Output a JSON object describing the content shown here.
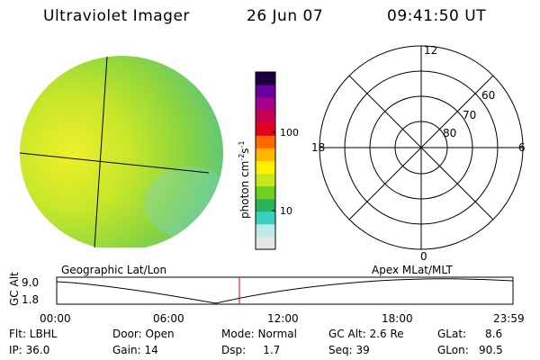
{
  "header": {
    "title": "Ultraviolet Imager",
    "date": "26 Jun 07",
    "time": "09:41:50 UT"
  },
  "colorbar": {
    "label_main": "photon cm",
    "label_exp1": "-2",
    "label_mid": "s",
    "label_exp2": "-1",
    "ticks": [
      "100",
      "10"
    ],
    "colors": [
      "#e6e6e6",
      "#bfe9e6",
      "#3ad0c4",
      "#2ab35a",
      "#6ed11f",
      "#c6e81b",
      "#fff000",
      "#ffb400",
      "#ff6a00",
      "#e4001a",
      "#c8004e",
      "#a8008a",
      "#6b00a0",
      "#1a0040"
    ]
  },
  "polar": {
    "mlt_labels": [
      "12",
      "18",
      "6",
      "0"
    ],
    "lat_labels": [
      "60",
      "70",
      "80"
    ]
  },
  "altitude_plot": {
    "left_label": "Geographic Lat/Lon",
    "right_label": "Apex MLat/MLT",
    "y_axis_label": "GC Alt",
    "y_ticks": [
      "9.0",
      "1.8"
    ],
    "x_ticks": [
      "00:00",
      "06:00",
      "12:00",
      "18:00",
      "23:59"
    ],
    "current_time_color": "#e00000"
  },
  "info": {
    "flt": "Flt: LBHL",
    "ip": "IP: 36.0",
    "door": "Door: Open",
    "gain": "Gain: 14",
    "mode": "Mode: Normal",
    "dsp": "Dsp:     1.7",
    "gc_alt": "GC Alt: 2.6 Re",
    "seq": "Seq: 39",
    "glat_label": "GLat:",
    "glat_value": "8.6",
    "glon_label": "GLon:",
    "glon_value": "90.5"
  }
}
